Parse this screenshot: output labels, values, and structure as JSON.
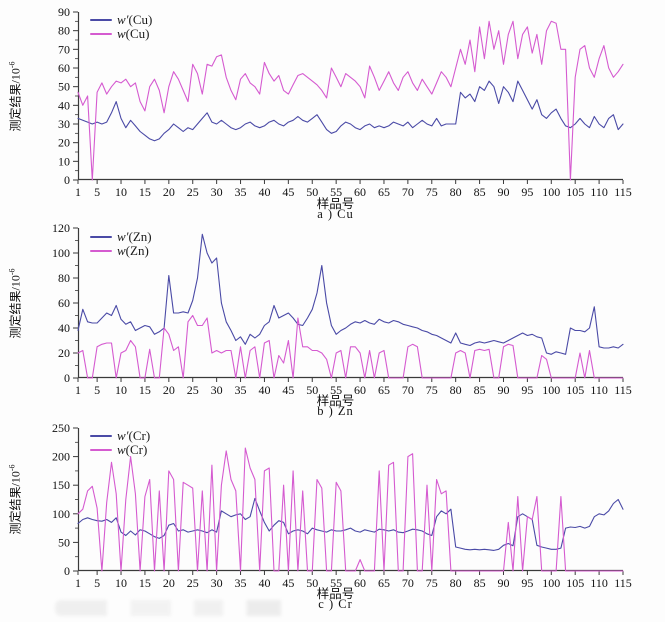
{
  "page": {
    "background": "#fdfdfd"
  },
  "colors": {
    "series_corrected": "#4a4aa6",
    "series_measured": "#d55bd0",
    "axis": "#3a3a3a",
    "text": "#111111"
  },
  "ylabel_parts": {
    "base": "测定结果/10",
    "exp": "-6"
  },
  "chart_data": [
    {
      "type": "line",
      "title": "a ) Cu",
      "xlabel": "样品号",
      "ylabel": "测定结果/10⁻⁶",
      "xlim": [
        1,
        115
      ],
      "ylim": [
        0,
        90
      ],
      "xticks": [
        1,
        5,
        10,
        15,
        20,
        25,
        30,
        35,
        40,
        45,
        50,
        55,
        60,
        65,
        70,
        75,
        80,
        85,
        90,
        95,
        100,
        105,
        110,
        115
      ],
      "yticks": [
        0,
        10,
        20,
        30,
        40,
        50,
        60,
        70,
        80,
        90
      ],
      "grid": false,
      "legend_position": "top-left",
      "series": [
        {
          "name": "w′(Cu)",
          "var": "w′",
          "rest": "(Cu)",
          "color": "#4a4aa6",
          "values": [
            33,
            32,
            31,
            30,
            31,
            30,
            31,
            36,
            42,
            33,
            28,
            32,
            29,
            26,
            24,
            22,
            21,
            22,
            25,
            27,
            30,
            28,
            26,
            28,
            27,
            30,
            33,
            36,
            31,
            30,
            32,
            30,
            28,
            27,
            28,
            30,
            31,
            29,
            28,
            29,
            31,
            32,
            30,
            29,
            31,
            32,
            34,
            32,
            31,
            33,
            35,
            31,
            27,
            25,
            26,
            29,
            31,
            30,
            28,
            27,
            29,
            30,
            28,
            29,
            28,
            29,
            31,
            30,
            29,
            31,
            28,
            30,
            32,
            30,
            29,
            33,
            29,
            30,
            30,
            30,
            47,
            44,
            46,
            42,
            50,
            48,
            53,
            50,
            41,
            50,
            47,
            42,
            53,
            48,
            43,
            38,
            43,
            35,
            33,
            36,
            38,
            33,
            29,
            28,
            30,
            33,
            30,
            28,
            34,
            30,
            28,
            33,
            35,
            27,
            30
          ]
        },
        {
          "name": "w(Cu)",
          "var": "w",
          "rest": "(Cu)",
          "color": "#d55bd0",
          "values": [
            47,
            40,
            45,
            0,
            47,
            52,
            46,
            50,
            53,
            52,
            54,
            50,
            52,
            42,
            37,
            50,
            54,
            48,
            36,
            50,
            58,
            54,
            48,
            42,
            62,
            57,
            46,
            62,
            61,
            66,
            67,
            55,
            48,
            43,
            54,
            57,
            52,
            50,
            46,
            63,
            57,
            53,
            56,
            48,
            46,
            51,
            56,
            57,
            55,
            53,
            51,
            48,
            44,
            60,
            55,
            50,
            57,
            55,
            53,
            50,
            44,
            61,
            55,
            48,
            53,
            58,
            52,
            48,
            55,
            58,
            52,
            48,
            54,
            50,
            46,
            52,
            58,
            55,
            50,
            60,
            70,
            62,
            75,
            58,
            82,
            65,
            85,
            70,
            80,
            62,
            78,
            85,
            65,
            78,
            82,
            68,
            78,
            62,
            80,
            85,
            84,
            70,
            70,
            0,
            55,
            70,
            72,
            60,
            55,
            65,
            72,
            60,
            55,
            58,
            62
          ]
        }
      ]
    },
    {
      "type": "line",
      "title": "b ) Zn",
      "xlabel": "样品号",
      "ylabel": "测定结果/10⁻⁶",
      "xlim": [
        1,
        115
      ],
      "ylim": [
        0,
        120
      ],
      "xticks": [
        1,
        5,
        10,
        15,
        20,
        25,
        30,
        35,
        40,
        45,
        50,
        55,
        60,
        65,
        70,
        75,
        80,
        85,
        90,
        95,
        100,
        105,
        110,
        115
      ],
      "yticks": [
        0,
        20,
        40,
        60,
        80,
        100,
        120
      ],
      "grid": false,
      "legend_position": "top-left",
      "series": [
        {
          "name": "w′(Zn)",
          "var": "w′",
          "rest": "(Zn)",
          "color": "#4a4aa6",
          "values": [
            38,
            55,
            45,
            44,
            44,
            48,
            52,
            50,
            58,
            47,
            43,
            45,
            38,
            40,
            42,
            41,
            35,
            37,
            40,
            82,
            52,
            52,
            53,
            52,
            62,
            80,
            115,
            100,
            92,
            96,
            60,
            45,
            38,
            30,
            33,
            27,
            35,
            32,
            35,
            42,
            45,
            58,
            48,
            50,
            52,
            48,
            43,
            42,
            48,
            55,
            68,
            90,
            60,
            42,
            35,
            38,
            40,
            43,
            45,
            44,
            46,
            44,
            43,
            47,
            45,
            44,
            46,
            45,
            43,
            42,
            41,
            40,
            38,
            37,
            35,
            34,
            32,
            30,
            28,
            36,
            28,
            27,
            26,
            28,
            29,
            28,
            29,
            30,
            29,
            28,
            30,
            32,
            34,
            36,
            34,
            35,
            33,
            32,
            20,
            19,
            21,
            20,
            19,
            40,
            38,
            38,
            37,
            40,
            57,
            25,
            24,
            24,
            25,
            24,
            27
          ]
        },
        {
          "name": "w(Zn)",
          "var": "w",
          "rest": "(Zn)",
          "color": "#d55bd0",
          "values": [
            20,
            22,
            0,
            0,
            25,
            27,
            28,
            28,
            0,
            20,
            22,
            30,
            25,
            0,
            0,
            23,
            0,
            0,
            40,
            35,
            22,
            25,
            0,
            45,
            50,
            42,
            42,
            48,
            20,
            22,
            20,
            22,
            22,
            0,
            25,
            0,
            22,
            25,
            0,
            28,
            30,
            0,
            18,
            12,
            30,
            0,
            48,
            25,
            25,
            22,
            22,
            20,
            15,
            0,
            20,
            22,
            0,
            25,
            25,
            20,
            0,
            22,
            0,
            20,
            22,
            0,
            0,
            0,
            0,
            25,
            27,
            25,
            0,
            0,
            0,
            0,
            0,
            0,
            0,
            20,
            22,
            20,
            0,
            22,
            23,
            22,
            23,
            0,
            0,
            25,
            27,
            26,
            0,
            0,
            0,
            0,
            0,
            18,
            15,
            0,
            0,
            0,
            0,
            0,
            0,
            20,
            0,
            22,
            0,
            0,
            0,
            0,
            0,
            0,
            0
          ]
        }
      ]
    },
    {
      "type": "line",
      "title": "c ) Cr",
      "xlabel": "样品号",
      "ylabel": "测定结果/10⁻⁶",
      "xlim": [
        1,
        115
      ],
      "ylim": [
        0,
        250
      ],
      "xticks": [
        1,
        5,
        10,
        15,
        20,
        25,
        30,
        35,
        40,
        45,
        50,
        55,
        60,
        65,
        70,
        75,
        80,
        85,
        90,
        95,
        100,
        105,
        110,
        115
      ],
      "yticks": [
        0,
        50,
        100,
        150,
        200,
        250
      ],
      "grid": false,
      "legend_position": "top-left",
      "series": [
        {
          "name": "w′(Cr)",
          "var": "w′",
          "rest": "(Cr)",
          "color": "#4a4aa6",
          "values": [
            83,
            90,
            93,
            90,
            88,
            87,
            90,
            85,
            93,
            68,
            62,
            70,
            63,
            72,
            70,
            65,
            60,
            57,
            62,
            80,
            83,
            70,
            72,
            68,
            70,
            72,
            70,
            67,
            72,
            68,
            105,
            100,
            95,
            98,
            100,
            90,
            95,
            127,
            105,
            85,
            70,
            80,
            88,
            85,
            65,
            70,
            72,
            70,
            65,
            75,
            72,
            70,
            68,
            72,
            70,
            70,
            72,
            75,
            70,
            68,
            72,
            70,
            68,
            73,
            72,
            70,
            72,
            68,
            67,
            70,
            73,
            72,
            70,
            65,
            62,
            95,
            105,
            100,
            108,
            42,
            40,
            38,
            37,
            38,
            37,
            38,
            37,
            36,
            38,
            45,
            48,
            44,
            95,
            100,
            95,
            90,
            45,
            42,
            40,
            38,
            38,
            40,
            75,
            77,
            76,
            78,
            75,
            78,
            95,
            100,
            98,
            105,
            118,
            125,
            108
          ]
        },
        {
          "name": "w(Cr)",
          "var": "w",
          "rest": "(Cr)",
          "color": "#d55bd0",
          "values": [
            100,
            108,
            140,
            148,
            110,
            0,
            120,
            190,
            135,
            0,
            125,
            200,
            135,
            0,
            130,
            160,
            0,
            140,
            0,
            175,
            160,
            0,
            155,
            150,
            145,
            0,
            140,
            0,
            185,
            0,
            150,
            210,
            160,
            140,
            0,
            215,
            180,
            160,
            0,
            175,
            180,
            0,
            0,
            150,
            0,
            175,
            0,
            140,
            0,
            0,
            160,
            145,
            0,
            0,
            155,
            140,
            0,
            0,
            0,
            20,
            0,
            0,
            0,
            175,
            0,
            185,
            190,
            0,
            0,
            200,
            205,
            0,
            0,
            150,
            0,
            160,
            135,
            140,
            0,
            0,
            0,
            0,
            0,
            0,
            0,
            0,
            0,
            0,
            0,
            0,
            85,
            0,
            130,
            0,
            95,
            90,
            130,
            0,
            0,
            0,
            0,
            130,
            0,
            0,
            0,
            0,
            0,
            0,
            0,
            0,
            0,
            0,
            0,
            0,
            0
          ]
        }
      ]
    }
  ]
}
